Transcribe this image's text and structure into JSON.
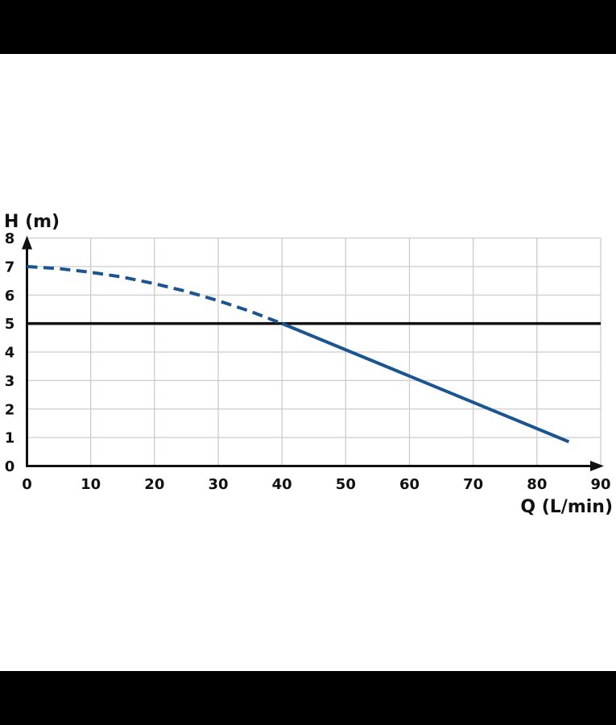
{
  "colors": {
    "background": "#ffffff",
    "letterbox": "#000000",
    "grid": "#cccccc",
    "axis": "#111111",
    "reference_line": "#111111",
    "curve": "#1a5591"
  },
  "chart_data": {
    "type": "line",
    "title": "",
    "xlabel": "Q (L/min)",
    "ylabel": "H (m)",
    "xlim": [
      0,
      90
    ],
    "ylim": [
      0,
      8
    ],
    "x_ticks": [
      0,
      10,
      20,
      30,
      40,
      50,
      60,
      70,
      80,
      90
    ],
    "y_ticks": [
      0,
      1,
      2,
      3,
      4,
      5,
      6,
      7,
      8
    ],
    "grid": true,
    "legend": "none",
    "reference_line": {
      "orientation": "horizontal",
      "value": 5
    },
    "series": [
      {
        "name": "head-curve-projected",
        "style": "dashed",
        "points": [
          [
            0,
            7.0
          ],
          [
            5,
            6.93
          ],
          [
            10,
            6.8
          ],
          [
            15,
            6.63
          ],
          [
            20,
            6.4
          ],
          [
            25,
            6.13
          ],
          [
            30,
            5.8
          ],
          [
            35,
            5.43
          ],
          [
            40,
            5.0
          ]
        ]
      },
      {
        "name": "head-curve-operating",
        "style": "solid",
        "points": [
          [
            40,
            5.0
          ],
          [
            85,
            0.85
          ]
        ]
      }
    ]
  }
}
